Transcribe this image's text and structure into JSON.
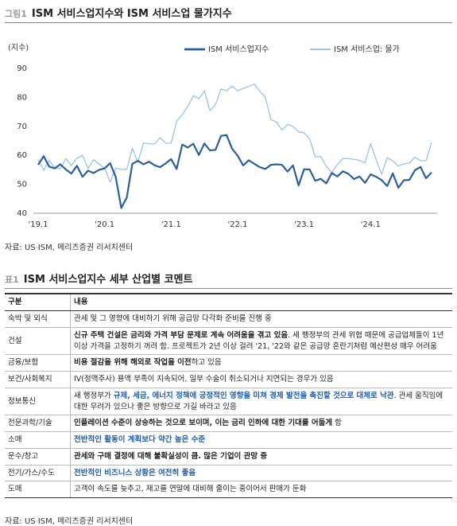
{
  "figure_label": "그림1",
  "figure_title": "ISM 서비스업지수와 ISM 서비스업 물가지수",
  "chart_data": {
    "type": "line",
    "y_label": "(지수)",
    "categories": [
      "'19.1",
      null,
      null,
      null,
      null,
      null,
      null,
      null,
      null,
      null,
      null,
      null,
      "'20.1",
      null,
      null,
      null,
      null,
      null,
      null,
      null,
      null,
      null,
      null,
      null,
      "'21.1",
      null,
      null,
      null,
      null,
      null,
      null,
      null,
      null,
      null,
      null,
      null,
      "'22.1",
      null,
      null,
      null,
      null,
      null,
      null,
      null,
      null,
      null,
      null,
      null,
      "'23.1",
      null,
      null,
      null,
      null,
      null,
      null,
      null,
      null,
      null,
      null,
      null,
      "'24.1",
      null,
      null,
      null,
      null,
      null,
      null,
      null,
      null,
      null,
      null,
      null
    ],
    "series": [
      {
        "name": "ISM 서비스업지수",
        "color": "#2a5f9e",
        "width": 2.2,
        "values": [
          56.7,
          59.7,
          56.1,
          55.5,
          56.9,
          55.1,
          53.7,
          56.4,
          52.6,
          54.7,
          53.9,
          55.0,
          55.5,
          57.3,
          52.5,
          41.8,
          45.4,
          57.1,
          58.1,
          56.9,
          57.8,
          56.6,
          55.9,
          57.2,
          58.7,
          55.3,
          63.7,
          62.7,
          64.0,
          60.1,
          64.1,
          61.7,
          61.9,
          66.7,
          67.0,
          62.3,
          59.9,
          56.5,
          58.3,
          57.1,
          55.9,
          55.3,
          56.7,
          56.9,
          56.7,
          54.4,
          56.5,
          49.6,
          55.2,
          55.1,
          51.2,
          51.9,
          50.3,
          53.9,
          52.7,
          54.5,
          53.6,
          51.8,
          52.7,
          50.5,
          53.4,
          52.6,
          51.4,
          49.4,
          53.8,
          48.8,
          51.4,
          51.5,
          54.9,
          56.0,
          52.1,
          54.1
        ]
      },
      {
        "name": "ISM 서비스업: 물가",
        "color": "#9cc3e4",
        "width": 1.3,
        "values": [
          58.5,
          54.9,
          58.2,
          55.6,
          55.4,
          58.9,
          56.5,
          59.0,
          60.0,
          55.5,
          58.5,
          57.0,
          55.5,
          50.8,
          55.6,
          55.1,
          55.2,
          62.4,
          57.6,
          64.2,
          64.0,
          63.9,
          66.1,
          64.2,
          64.2,
          71.8,
          74.0,
          76.8,
          80.6,
          79.5,
          82.3,
          75.4,
          77.5,
          82.9,
          82.3,
          83.9,
          82.3,
          83.1,
          83.8,
          84.6,
          82.1,
          80.1,
          72.3,
          71.5,
          68.7,
          70.7,
          70.0,
          68.1,
          67.8,
          65.6,
          59.5,
          59.6,
          56.2,
          54.1,
          56.8,
          58.9,
          58.9,
          58.6,
          58.3,
          57.4,
          64.0,
          58.6,
          53.4,
          59.2,
          58.1,
          56.3,
          57.0,
          57.3,
          59.4,
          58.1,
          58.2,
          64.4
        ]
      }
    ],
    "ylim": [
      40,
      90
    ],
    "yticks": [
      40,
      50,
      60,
      70,
      80,
      90
    ],
    "grid": false,
    "legend": "top"
  },
  "figure_source": "자료: US ISM, 메리츠증권 리서치센터",
  "table_label": "표1",
  "table_title": "ISM 서비스업지수 세부 산업별 코멘트",
  "table": {
    "header": [
      "구분",
      "내용"
    ],
    "rows": [
      {
        "category": "숙박 및 외식",
        "content": [
          {
            "text": "관세 및 그 영향에 대비하기 위해 공급망 다각화 준비를 진행 중"
          }
        ]
      },
      {
        "category": "건설",
        "content": [
          {
            "text": "신규 주택 건설은 금리와 가격 부담 문제로 계속 어려움을 겪고 있음",
            "style": "bold"
          },
          {
            "text": ". 새 행정부의 관세 위협 때문에 공급업체들이 1년 이상 가격을 고정하기 꺼려 함. 프로젝트가 2년 이상 걸려 '21, '22와 같은 공급망 혼란기처럼 예산편성 매우 어려움"
          }
        ]
      },
      {
        "category": "금융/보험",
        "content": [
          {
            "text": "비용 절감을 위해 해외로 작업을 이전",
            "style": "bold"
          },
          {
            "text": "하고 있음"
          }
        ]
      },
      {
        "category": "보건/사회복지",
        "content": [
          {
            "text": "IV(정맥주사) 용액 부족이 지속되어, 일부 수술이 취소되거나 지연되는 경우가 있음"
          }
        ]
      },
      {
        "category": "정보통신",
        "content": [
          {
            "text": "새 행정부가 "
          },
          {
            "text": "규제, 세금, 에너지 정책에 긍정적인 영향을 미쳐 경제 발전을 촉진할 것으로 대체로 낙관",
            "style": "blue"
          },
          {
            "text": ". 관세 움직임에 대한 우려가 있으나 좋은 방향으로 가길 바라고 있음"
          }
        ]
      },
      {
        "category": "전문과학/기술",
        "content": [
          {
            "text": "인플레이션 수준이 상승하는 것으로 보이며, 이는 금리 인하에 대한 기대를 어둡게",
            "style": "bold"
          },
          {
            "text": " 함"
          }
        ]
      },
      {
        "category": "소매",
        "content": [
          {
            "text": "전반적인 활동이 계획보다 약간 높은 수준",
            "style": "blue"
          }
        ]
      },
      {
        "category": "운수/창고",
        "content": [
          {
            "text": "관세와 구매 결정에 대해 불확실성이 큼. 많은 기업이 관망 중",
            "style": "bold"
          }
        ]
      },
      {
        "category": "전기/가스/수도",
        "content": [
          {
            "text": "전반적인 비즈니스 상황은 여전히 좋음",
            "style": "blue"
          }
        ]
      },
      {
        "category": "도매",
        "content": [
          {
            "text": "고객이 속도를 늦추고, 재고를 연말에 대비해 줄이는 중이어서 판매가 둔화"
          }
        ]
      }
    ]
  },
  "table_source": "자료: US ISM, 메리츠증권 리서치센터"
}
